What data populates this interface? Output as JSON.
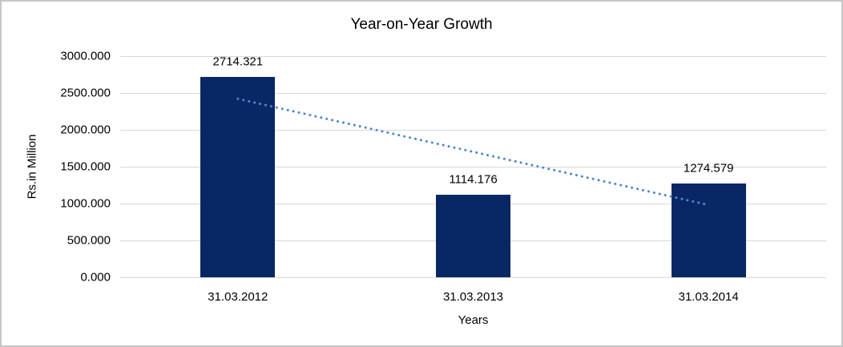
{
  "chart_data": {
    "type": "bar",
    "title": "Year-on-Year Growth",
    "xlabel": "Years",
    "ylabel": "Rs.in Million",
    "categories": [
      "31.03.2012",
      "31.03.2013",
      "31.03.2014"
    ],
    "values": [
      2714.321,
      1114.176,
      1274.579
    ],
    "data_labels": [
      "2714.321",
      "1114.176",
      "1274.579"
    ],
    "y_ticks": [
      {
        "value": 3000,
        "label": "3000.000"
      },
      {
        "value": 2500,
        "label": "2500.000"
      },
      {
        "value": 2000,
        "label": "2000.000"
      },
      {
        "value": 1500,
        "label": "1500.000"
      },
      {
        "value": 1000,
        "label": "1000.000"
      },
      {
        "value": 500,
        "label": "500.000"
      },
      {
        "value": 0,
        "label": "0.000"
      }
    ],
    "ylim": [
      0,
      3000
    ],
    "grid": true,
    "legend": false,
    "colors": {
      "bar": "#0a2765",
      "trendline": "#4e87cb",
      "gridline": "#d9d9d9",
      "text": "#000000",
      "frame_border": "#c7c7c7"
    },
    "trendline": {
      "kind": "linear",
      "line_style": "dotted",
      "start_value": 2420.9,
      "end_value": 981.2
    }
  }
}
